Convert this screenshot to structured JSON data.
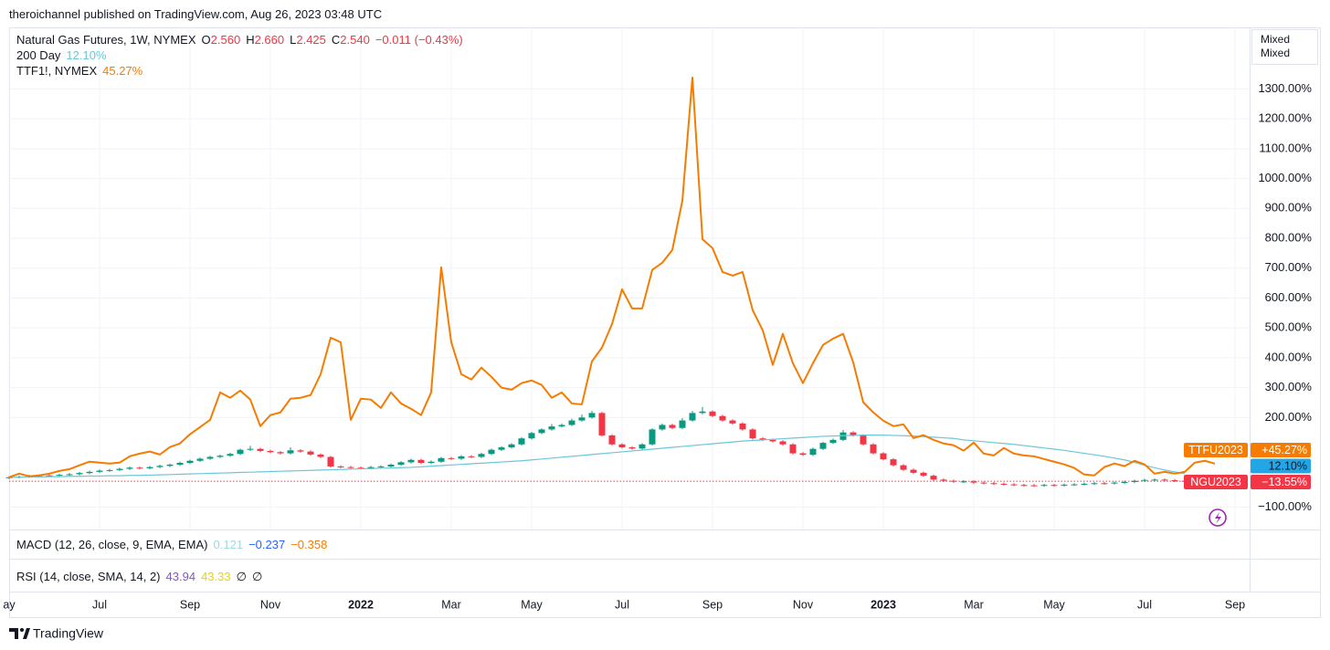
{
  "header": "theroichannel published on TradingView.com, Aug 26, 2023 03:48 UTC",
  "footer": "TradingView",
  "mode_box": [
    "Mixed",
    "Mixed"
  ],
  "indicators": [
    {
      "name": "MACD (12, 26, close, 9, EMA, EMA)",
      "values": [
        {
          "text": "0.121",
          "color": "#9fd8e3"
        },
        {
          "text": "−0.237",
          "color": "#2962ff"
        },
        {
          "text": "−0.358",
          "color": "#f57c00"
        }
      ]
    },
    {
      "name": "RSI (14, close, SMA, 14, 2)",
      "values": [
        {
          "text": "43.94",
          "color": "#7e57c2"
        },
        {
          "text": "43.33",
          "color": "#e8d400"
        },
        {
          "text": "∅",
          "color": "#131722"
        },
        {
          "text": "∅",
          "color": "#131722"
        }
      ]
    }
  ],
  "chart_data": {
    "type": "candlestick",
    "grid": true,
    "ylim": [
      -175,
      1500
    ],
    "yticks": [
      {
        "value": -100,
        "label": "−100.00%"
      },
      {
        "value": 200,
        "label": "200.00%"
      },
      {
        "value": 300,
        "label": "300.00%"
      },
      {
        "value": 400,
        "label": "400.00%"
      },
      {
        "value": 500,
        "label": "500.00%"
      },
      {
        "value": 600,
        "label": "600.00%"
      },
      {
        "value": 700,
        "label": "700.00%"
      },
      {
        "value": 800,
        "label": "800.00%"
      },
      {
        "value": 900,
        "label": "900.00%"
      },
      {
        "value": 1000,
        "label": "1000.00%"
      },
      {
        "value": 1100,
        "label": "1100.00%"
      },
      {
        "value": 1200,
        "label": "1200.00%"
      },
      {
        "value": 1300,
        "label": "1300.00%"
      }
    ],
    "categories": [
      "ay",
      null,
      null,
      null,
      null,
      null,
      null,
      null,
      null,
      "Jul",
      null,
      null,
      null,
      null,
      null,
      null,
      null,
      null,
      "Sep",
      null,
      null,
      null,
      null,
      null,
      null,
      null,
      "Nov",
      null,
      null,
      null,
      null,
      null,
      null,
      null,
      null,
      "2022",
      null,
      null,
      null,
      null,
      null,
      null,
      null,
      null,
      "Mar",
      null,
      null,
      null,
      null,
      null,
      null,
      null,
      "May",
      null,
      null,
      null,
      null,
      null,
      null,
      null,
      null,
      "Jul",
      null,
      null,
      null,
      null,
      null,
      null,
      null,
      null,
      "Sep",
      null,
      null,
      null,
      null,
      null,
      null,
      null,
      null,
      "Nov",
      null,
      null,
      null,
      null,
      null,
      null,
      null,
      "2023",
      null,
      null,
      null,
      null,
      null,
      null,
      null,
      null,
      "Mar",
      null,
      null,
      null,
      null,
      null,
      null,
      null,
      "May",
      null,
      null,
      null,
      null,
      null,
      null,
      null,
      null,
      "Jul",
      null,
      null,
      null,
      null,
      null,
      null,
      null,
      null,
      "Sep"
    ],
    "candles": {
      "name": "Natural Gas Futures, 1W, NYMEX",
      "legend": [
        {
          "key": "O",
          "value": "2.560"
        },
        {
          "key": "H",
          "value": "2.660"
        },
        {
          "key": "L",
          "value": "2.425"
        },
        {
          "key": "C",
          "value": "2.540"
        }
      ],
      "change": "−0.011 (−0.43%)",
      "up_color": "#089981",
      "down_color": "#f23645",
      "open": [
        -2,
        0,
        2,
        4,
        6,
        5,
        8,
        10,
        14,
        18,
        22,
        24,
        28,
        32,
        30,
        34,
        38,
        42,
        48,
        55,
        62,
        68,
        72,
        78,
        92,
        95,
        88,
        84,
        80,
        90,
        86,
        76,
        68,
        36,
        34,
        32,
        30,
        34,
        36,
        42,
        50,
        58,
        48,
        52,
        64,
        62,
        70,
        68,
        78,
        92,
        100,
        110,
        130,
        148,
        160,
        170,
        175,
        190,
        200,
        215,
        140,
        110,
        100,
        96,
        110,
        160,
        175,
        165,
        190,
        215,
        220,
        205,
        190,
        180,
        160,
        130,
        125,
        120,
        110,
        80,
        75,
        95,
        115,
        125,
        150,
        140,
        110,
        80,
        60,
        40,
        25,
        15,
        5,
        -8,
        -12,
        -15,
        -14,
        -18,
        -20,
        -22,
        -24,
        -26,
        -27,
        -28,
        -26,
        -27,
        -25,
        -24,
        -22,
        -20,
        -21,
        -18,
        -16,
        -12,
        -9,
        -8,
        -10,
        -12,
        null,
        null,
        null,
        null,
        null
      ],
      "high": [
        4,
        6,
        8,
        10,
        10,
        12,
        14,
        18,
        22,
        26,
        28,
        32,
        36,
        36,
        38,
        42,
        46,
        52,
        59,
        66,
        72,
        76,
        82,
        96,
        105,
        99,
        92,
        88,
        100,
        94,
        90,
        80,
        72,
        40,
        38,
        36,
        38,
        40,
        46,
        54,
        62,
        62,
        56,
        68,
        68,
        74,
        74,
        82,
        96,
        104,
        114,
        134,
        152,
        164,
        178,
        180,
        196,
        210,
        222,
        219,
        144,
        114,
        104,
        114,
        164,
        180,
        179,
        198,
        222,
        235,
        224,
        209,
        194,
        184,
        164,
        134,
        129,
        124,
        114,
        84,
        99,
        119,
        129,
        158,
        154,
        144,
        114,
        84,
        64,
        44,
        29,
        19,
        9,
        -4,
        -8,
        -10,
        -10,
        -14,
        -16,
        -18,
        -20,
        -22,
        -23,
        -22,
        -22,
        -21,
        -20,
        -18,
        -16,
        -16,
        -14,
        -12,
        -8,
        -5,
        -4,
        -4,
        -6,
        -8,
        null,
        null,
        null,
        null,
        null
      ],
      "low": [
        -6,
        -4,
        -2,
        0,
        1,
        1,
        4,
        6,
        10,
        14,
        18,
        20,
        24,
        26,
        26,
        30,
        34,
        38,
        44,
        51,
        58,
        64,
        68,
        74,
        88,
        84,
        80,
        76,
        76,
        82,
        72,
        64,
        32,
        30,
        28,
        26,
        26,
        30,
        32,
        38,
        46,
        44,
        44,
        48,
        58,
        58,
        64,
        64,
        74,
        88,
        96,
        106,
        126,
        144,
        156,
        166,
        171,
        186,
        196,
        136,
        106,
        96,
        92,
        92,
        106,
        156,
        161,
        161,
        186,
        211,
        201,
        186,
        176,
        156,
        126,
        121,
        116,
        106,
        76,
        71,
        71,
        91,
        111,
        121,
        136,
        106,
        76,
        56,
        36,
        21,
        11,
        1,
        -12,
        -16,
        -19,
        -19,
        -22,
        -24,
        -26,
        -28,
        -30,
        -31,
        -32,
        -32,
        -31,
        -31,
        -29,
        -28,
        -26,
        -25,
        -25,
        -22,
        -20,
        -16,
        -13,
        -14,
        -16,
        -18,
        null,
        null,
        null,
        null,
        null
      ],
      "close": [
        0,
        2,
        4,
        6,
        5,
        8,
        10,
        14,
        18,
        22,
        24,
        28,
        32,
        30,
        34,
        38,
        42,
        48,
        55,
        62,
        68,
        72,
        78,
        92,
        95,
        88,
        84,
        80,
        90,
        86,
        76,
        68,
        36,
        34,
        32,
        30,
        34,
        36,
        42,
        50,
        58,
        48,
        52,
        64,
        62,
        70,
        68,
        78,
        92,
        100,
        110,
        130,
        148,
        160,
        170,
        175,
        190,
        200,
        215,
        140,
        110,
        100,
        96,
        110,
        160,
        175,
        165,
        190,
        215,
        220,
        205,
        190,
        180,
        160,
        130,
        125,
        120,
        110,
        80,
        75,
        95,
        115,
        125,
        150,
        140,
        110,
        80,
        60,
        40,
        25,
        15,
        5,
        -8,
        -12,
        -15,
        -14,
        -18,
        -20,
        -22,
        -24,
        -26,
        -27,
        -28,
        -26,
        -27,
        -25,
        -24,
        -22,
        -20,
        -21,
        -18,
        -16,
        -12,
        -9,
        -8,
        -10,
        -12,
        -13.55,
        null,
        null,
        null,
        null,
        null
      ]
    },
    "series": [
      {
        "name": "200 Day",
        "type": "line",
        "color": "#6cc6da",
        "legend_value": "12.10%",
        "values": [
          0,
          0,
          1,
          1,
          2,
          2,
          3,
          3,
          4,
          4,
          5,
          5,
          6,
          6,
          7,
          8,
          9,
          10,
          11,
          12,
          13,
          14,
          15,
          16,
          17,
          18,
          19,
          20,
          21,
          22,
          23,
          24,
          25,
          26,
          27,
          28,
          29,
          30,
          31,
          32,
          33,
          35,
          37,
          39,
          41,
          43,
          45,
          47,
          49,
          51,
          53,
          55,
          58,
          61,
          64,
          67,
          70,
          73,
          76,
          79,
          82,
          85,
          88,
          91,
          94,
          97,
          100,
          103,
          106,
          109,
          112,
          115,
          118,
          121,
          123,
          125,
          127,
          129,
          131,
          133,
          135,
          137,
          138,
          139,
          140,
          141,
          141,
          141,
          140,
          139,
          138,
          136,
          134,
          132,
          130,
          125,
          122,
          119,
          116,
          113,
          110,
          106,
          102,
          98,
          94,
          90,
          85,
          80,
          75,
          70,
          64,
          58,
          50,
          40,
          32,
          24,
          18,
          12.1,
          null,
          null,
          null,
          null,
          null
        ]
      },
      {
        "name": "TTF1!, NYMEX",
        "type": "line",
        "color": "#f57c00",
        "legend_value": "45.27%",
        "values": [
          0,
          12,
          3,
          6,
          12,
          21,
          27,
          40,
          52,
          49,
          46,
          49,
          70,
          79,
          86,
          76,
          101,
          113,
          144,
          168,
          192,
          284,
          266,
          290,
          260,
          171,
          208,
          217,
          263,
          266,
          275,
          345,
          467,
          452,
          192,
          263,
          260,
          232,
          284,
          247,
          229,
          208,
          284,
          703,
          452,
          345,
          327,
          367,
          336,
          300,
          293,
          315,
          324,
          309,
          266,
          284,
          247,
          244,
          388,
          434,
          513,
          629,
          565,
          565,
          694,
          718,
          761,
          926,
          1338,
          797,
          767,
          687,
          675,
          687,
          559,
          492,
          376,
          480,
          382,
          315,
          382,
          443,
          464,
          480,
          385,
          251,
          217,
          189,
          171,
          177,
          131,
          141,
          125,
          113,
          107,
          89,
          116,
          79,
          73,
          98,
          79,
          73,
          70,
          61,
          52,
          43,
          31,
          9,
          6,
          34,
          46,
          37,
          55,
          43,
          12,
          18,
          12,
          18,
          49,
          55,
          45.27,
          null,
          null
        ]
      }
    ],
    "price_labels": [
      {
        "name": "TTFU2023",
        "label": "+45.27%",
        "color": "#f57c00",
        "text_color": "#ffffff"
      },
      {
        "label": "12.10%",
        "color": "#22a6e6",
        "text_color": "#131722"
      },
      {
        "name": "NGU2023",
        "label": "−13.55%",
        "color": "#f23645",
        "text_color": "#ffffff"
      }
    ]
  }
}
